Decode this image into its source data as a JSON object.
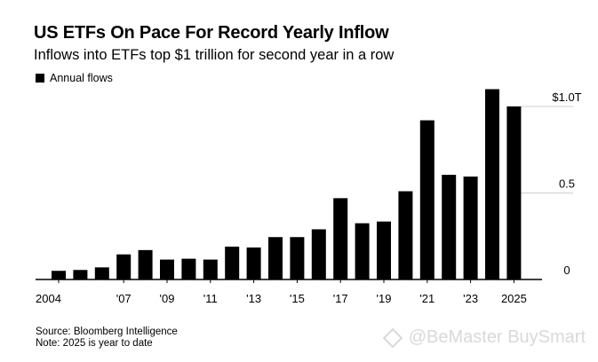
{
  "chart_data": {
    "type": "bar",
    "title": "US ETFs On Pace For Record Yearly Inflow",
    "subtitle": "Inflows into ETFs top $1 trillion for second year in a row",
    "legend": [
      {
        "name": "Annual flows",
        "color": "#000000"
      }
    ],
    "categories": [
      "2004",
      "2005",
      "2006",
      "2007",
      "2008",
      "2009",
      "2010",
      "2011",
      "2012",
      "2013",
      "2014",
      "2015",
      "2016",
      "2017",
      "2018",
      "2019",
      "2020",
      "2021",
      "2022",
      "2023",
      "2024",
      "2025"
    ],
    "series": [
      {
        "name": "Annual flows",
        "values": [
          0.05,
          0.055,
          0.07,
          0.145,
          0.17,
          0.115,
          0.12,
          0.115,
          0.19,
          0.185,
          0.245,
          0.245,
          0.29,
          0.47,
          0.325,
          0.335,
          0.51,
          0.92,
          0.605,
          0.595,
          1.1,
          1.0
        ]
      }
    ],
    "xlabel": "",
    "ylabel": "",
    "ylim": [
      0,
      1.1
    ],
    "yticks": [
      {
        "value": 0,
        "label": "0"
      },
      {
        "value": 0.5,
        "label": "0.5"
      },
      {
        "value": 1.0,
        "label": "$1.0T"
      }
    ],
    "xticks": [
      {
        "index": 0,
        "label": "2004"
      },
      {
        "index": 3,
        "label": "'07"
      },
      {
        "index": 5,
        "label": "'09"
      },
      {
        "index": 7,
        "label": "'11"
      },
      {
        "index": 9,
        "label": "'13"
      },
      {
        "index": 11,
        "label": "'15"
      },
      {
        "index": 13,
        "label": "'17"
      },
      {
        "index": 15,
        "label": "'19"
      },
      {
        "index": 17,
        "label": "'21"
      },
      {
        "index": 19,
        "label": "'23"
      },
      {
        "index": 21,
        "label": "2025"
      }
    ],
    "grid": true,
    "legend_position": "top-left"
  },
  "footer": {
    "source": "Source: Bloomberg Intelligence",
    "note": "Note: 2025 is year to date"
  },
  "watermark": {
    "text": "@BeMaster BuySmart"
  }
}
